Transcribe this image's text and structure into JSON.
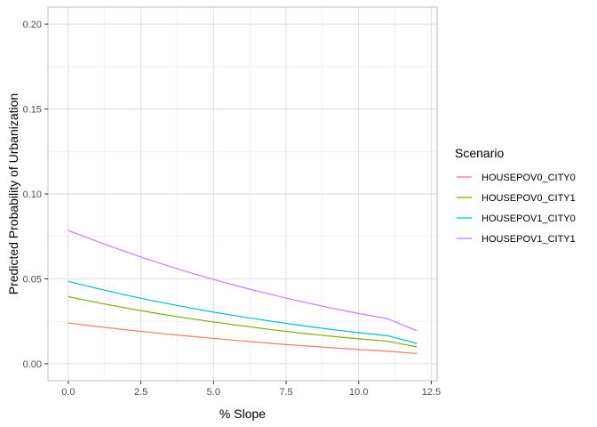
{
  "chart_data": {
    "type": "line",
    "title": "",
    "xlabel": "% Slope",
    "ylabel": "Predicted Probability of Urbanization",
    "xlim": [
      -0.7,
      12.7
    ],
    "ylim": [
      -0.01,
      0.21
    ],
    "x_ticks": [
      0.0,
      2.5,
      5.0,
      7.5,
      10.0,
      12.5
    ],
    "x_tick_labels": [
      "0.0",
      "2.5",
      "5.0",
      "7.5",
      "10.0",
      "12.5"
    ],
    "y_ticks": [
      0.0,
      0.05,
      0.1,
      0.15,
      0.2
    ],
    "y_tick_labels": [
      "0.00",
      "0.05",
      "0.10",
      "0.15",
      "0.20"
    ],
    "grid": true,
    "legend_position": "right",
    "legend_title": "Scenario",
    "x": [
      0,
      1,
      2,
      3,
      4,
      5,
      6,
      7,
      8,
      9,
      10,
      11,
      12
    ],
    "series": [
      {
        "name": "HOUSEPOV0_CITY0",
        "color": "#F8766D",
        "values": [
          0.024,
          0.0219,
          0.02,
          0.0182,
          0.0165,
          0.0149,
          0.0134,
          0.012,
          0.0107,
          0.0095,
          0.0084,
          0.0074,
          0.006
        ]
      },
      {
        "name": "HOUSEPOV0_CITY1",
        "color": "#7CAE00",
        "values": [
          0.0395,
          0.036,
          0.0328,
          0.0298,
          0.0271,
          0.0246,
          0.0223,
          0.0201,
          0.0181,
          0.0163,
          0.0147,
          0.0132,
          0.01
        ]
      },
      {
        "name": "HOUSEPOV1_CITY0",
        "color": "#00BFC4",
        "values": [
          0.0485,
          0.0443,
          0.0404,
          0.0368,
          0.0335,
          0.0304,
          0.0276,
          0.025,
          0.0226,
          0.0203,
          0.0183,
          0.0165,
          0.012
        ]
      },
      {
        "name": "HOUSEPOV1_CITY1",
        "color": "#C77CFF",
        "values": [
          0.0785,
          0.072,
          0.0658,
          0.06,
          0.0546,
          0.0496,
          0.045,
          0.0407,
          0.0367,
          0.033,
          0.0296,
          0.0265,
          0.0195
        ]
      }
    ]
  }
}
